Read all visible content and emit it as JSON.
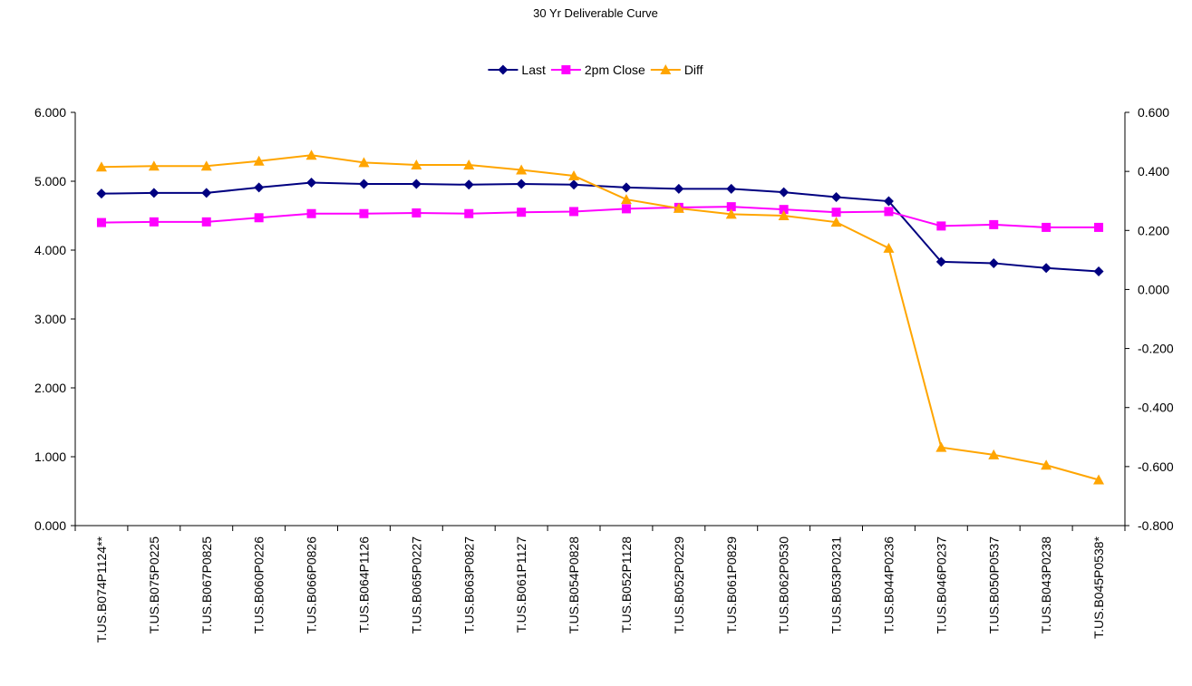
{
  "chart_data": {
    "type": "line",
    "title": "30 Yr Deliverable Curve",
    "legend_position": "top-center",
    "categories": [
      "T.US.B074P1124**",
      "T.US.B075P0225",
      "T.US.B067P0825",
      "T.US.B060P0226",
      "T.US.B066P0826",
      "T.US.B064P1126",
      "T.US.B065P0227",
      "T.US.B063P0827",
      "T.US.B061P1127",
      "T.US.B054P0828",
      "T.US.B052P1128",
      "T.US.B052P0229",
      "T.US.B061P0829",
      "T.US.B062P0530",
      "T.US.B053P0231",
      "T.US.B044P0236",
      "T.US.B046P0237",
      "T.US.B050P0537",
      "T.US.B043P0238",
      "T.US.B045P0538*"
    ],
    "y_left": {
      "min": 0,
      "max": 6,
      "step": 1,
      "ticks": [
        "0.000",
        "1.000",
        "2.000",
        "3.000",
        "4.000",
        "5.000",
        "6.000"
      ]
    },
    "y_right": {
      "min": -0.8,
      "max": 0.6,
      "step": 0.2,
      "ticks": [
        "-0.800",
        "-0.600",
        "-0.400",
        "-0.200",
        "0.000",
        "0.200",
        "0.400",
        "0.600"
      ]
    },
    "series": [
      {
        "name": "Last",
        "axis": "left",
        "color": "#000080",
        "marker": "diamond",
        "values": [
          4.82,
          4.83,
          4.83,
          4.91,
          4.98,
          4.96,
          4.96,
          4.95,
          4.96,
          4.95,
          4.91,
          4.89,
          4.89,
          4.84,
          4.77,
          4.71,
          3.83,
          3.81,
          3.74,
          3.69
        ]
      },
      {
        "name": "2pm Close",
        "axis": "left",
        "color": "#FF00FF",
        "marker": "square",
        "values": [
          4.4,
          4.41,
          4.41,
          4.47,
          4.53,
          4.53,
          4.54,
          4.53,
          4.55,
          4.56,
          4.6,
          4.62,
          4.63,
          4.59,
          4.55,
          4.56,
          4.35,
          4.37,
          4.33,
          4.33
        ]
      },
      {
        "name": "Diff",
        "axis": "right",
        "color": "#FFA500",
        "marker": "triangle",
        "values": [
          0.415,
          0.418,
          0.418,
          0.435,
          0.455,
          0.43,
          0.422,
          0.422,
          0.405,
          0.385,
          0.305,
          0.275,
          0.255,
          0.25,
          0.228,
          0.14,
          -0.535,
          -0.56,
          -0.595,
          -0.645
        ]
      }
    ]
  }
}
